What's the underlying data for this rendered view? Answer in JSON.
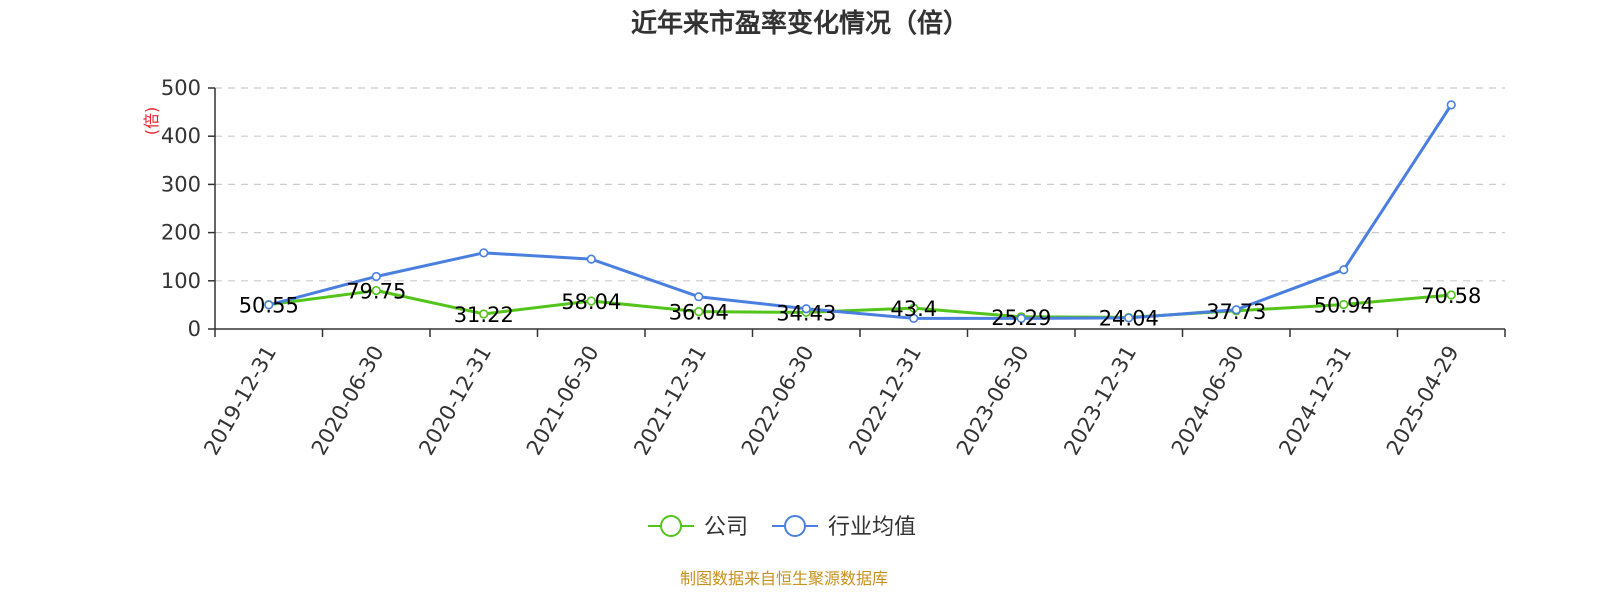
{
  "chart_data": {
    "type": "line",
    "title": "近年来市盈率变化情况（倍）",
    "ylabel": "(倍)",
    "categories": [
      "2019-12-31",
      "2020-06-30",
      "2020-12-31",
      "2021-06-30",
      "2021-12-31",
      "2022-06-30",
      "2022-12-31",
      "2023-06-30",
      "2023-12-31",
      "2024-06-30",
      "2024-12-31",
      "2025-04-29"
    ],
    "y_ticks": [
      "0",
      "100",
      "200",
      "300",
      "400",
      "500"
    ],
    "ylim": [
      0,
      500
    ],
    "grid": true,
    "legend_position": "bottom-center",
    "series": [
      {
        "name": "公司",
        "color": "#52c41a",
        "values": [
          50.55,
          79.75,
          31.22,
          58.04,
          36.04,
          34.43,
          43.4,
          25.29,
          24.04,
          37.73,
          50.94,
          70.58
        ],
        "labels": [
          "50.55",
          "79.75",
          "31.22",
          "58.04",
          "36.04",
          "34.43",
          "43.4",
          "25.29",
          "24.04",
          "37.73",
          "50.94",
          "70.58"
        ]
      },
      {
        "name": "行业均值",
        "color": "#4a7fe0",
        "values": [
          50,
          109,
          158,
          145,
          67,
          42,
          22,
          22,
          23,
          40,
          123,
          465
        ]
      }
    ],
    "source": "制图数据来自恒生聚源数据库",
    "source_color": "#c8901e"
  }
}
